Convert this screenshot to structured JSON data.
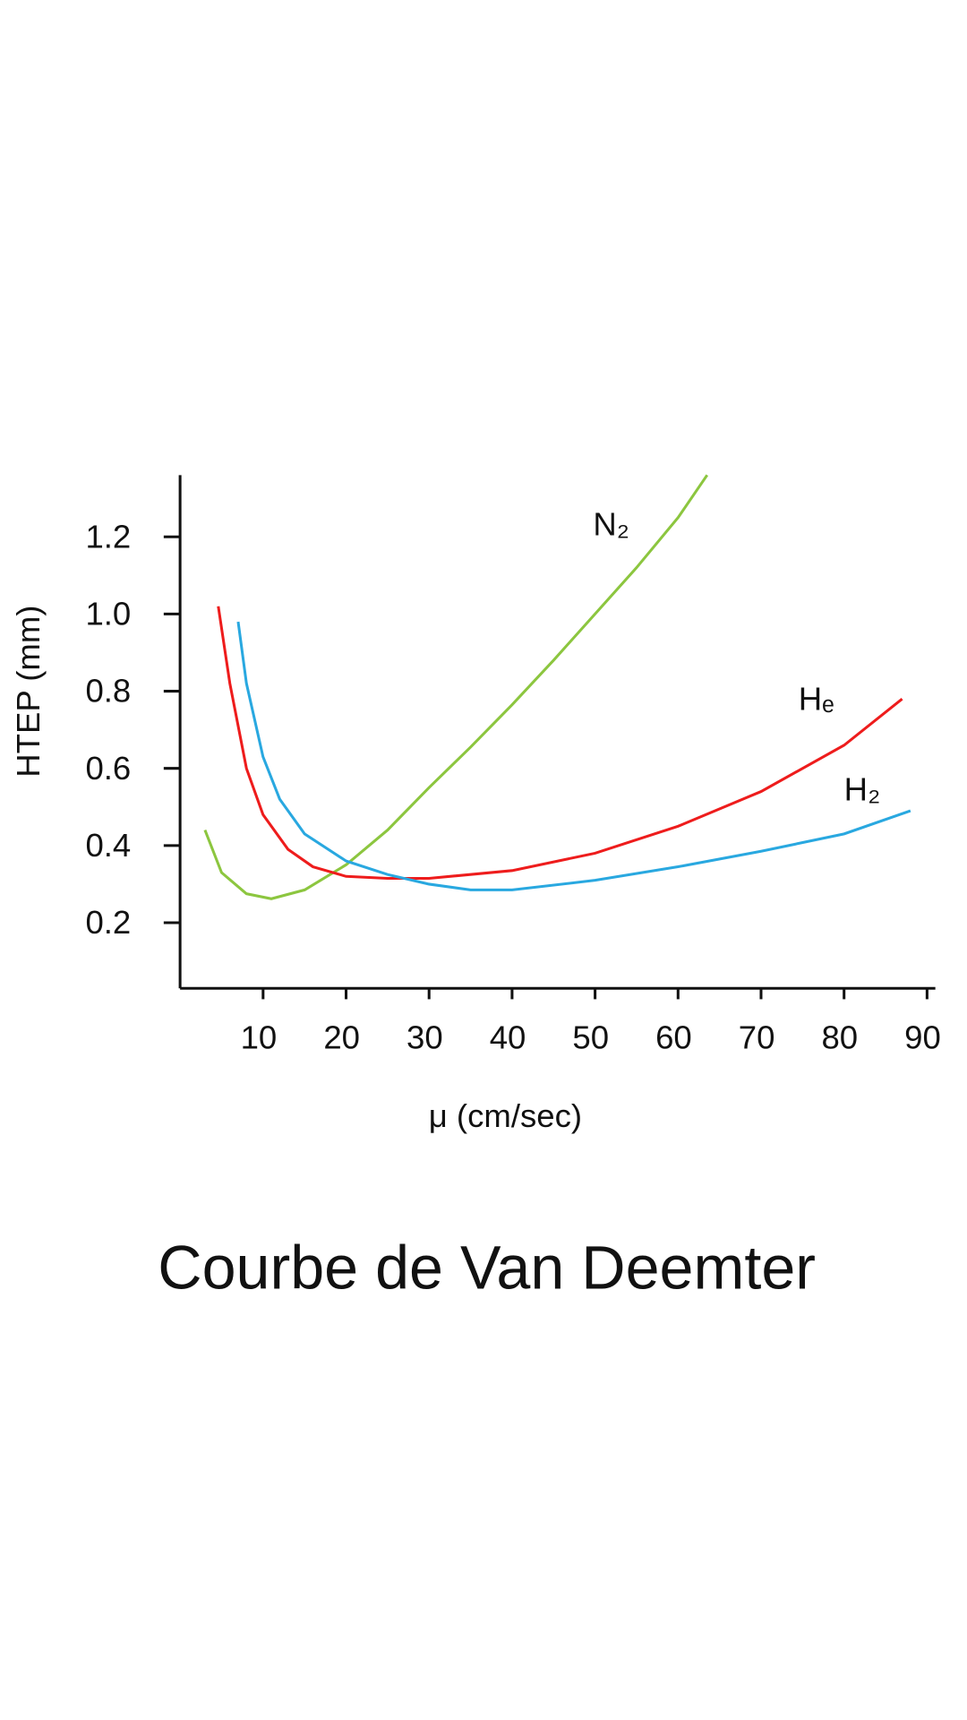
{
  "chart_data": {
    "type": "line",
    "title": "Courbe de Van Deemter",
    "xlabel": "μ (cm/sec)",
    "ylabel": "HTEP (mm)",
    "xlim": [
      0,
      91
    ],
    "xticks": [
      10,
      20,
      30,
      40,
      50,
      60,
      70,
      80,
      90
    ],
    "ylim": [
      0.03,
      1.36
    ],
    "yticks": [
      0.2,
      0.4,
      0.6,
      0.8,
      {
        "value": 1.0,
        "label": "1.0"
      },
      1.2
    ],
    "series": [
      {
        "name": "N₂",
        "color": "#8cc63f",
        "x": [
          3,
          5,
          8,
          11,
          15,
          20,
          25,
          30,
          35,
          40,
          45,
          50,
          55,
          60,
          63.5
        ],
        "values": [
          0.44,
          0.33,
          0.275,
          0.262,
          0.285,
          0.35,
          0.44,
          0.55,
          0.655,
          0.765,
          0.88,
          1.0,
          1.12,
          1.25,
          1.36
        ]
      },
      {
        "name": "Hₑ",
        "color": "#ee1c1c",
        "x": [
          4.6,
          6,
          8,
          10,
          13,
          16,
          20,
          25,
          30,
          40,
          50,
          60,
          70,
          80,
          87
        ],
        "values": [
          1.02,
          0.82,
          0.6,
          0.48,
          0.39,
          0.345,
          0.32,
          0.315,
          0.315,
          0.335,
          0.38,
          0.45,
          0.54,
          0.66,
          0.78
        ]
      },
      {
        "name": "H₂",
        "color": "#29a8e0",
        "x": [
          7,
          8,
          10,
          12,
          15,
          20,
          25,
          30,
          35,
          40,
          50,
          60,
          70,
          80,
          88
        ],
        "values": [
          0.98,
          0.82,
          0.63,
          0.52,
          0.43,
          0.36,
          0.325,
          0.3,
          0.285,
          0.285,
          0.31,
          0.345,
          0.385,
          0.43,
          0.49
        ]
      }
    ]
  }
}
